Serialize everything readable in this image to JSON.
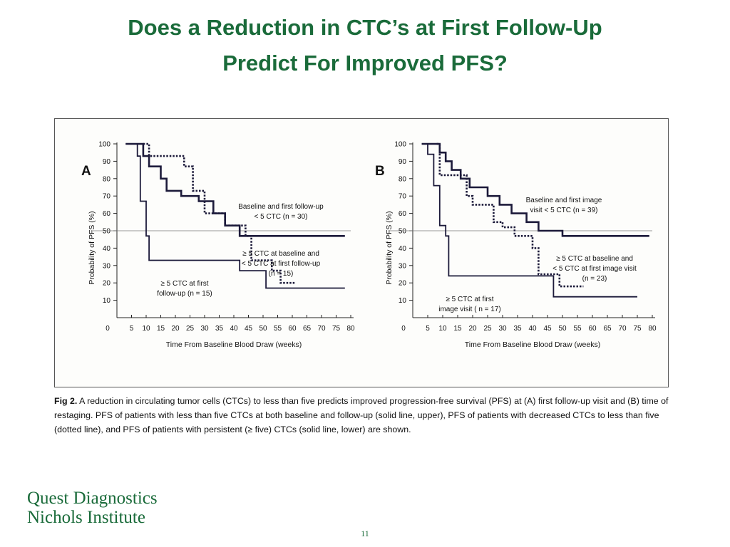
{
  "slide": {
    "title_line1": "Does a Reduction in CTC’s at First Follow-Up",
    "title_line2": "Predict For Improved PFS?",
    "page_number": "11",
    "logo_line1": "Quest Diagnostics",
    "logo_line2": "Nichols Institute"
  },
  "caption": {
    "label": "Fig 2.",
    "text": "A reduction in circulating tumor cells (CTCs) to less than five predicts improved progression-free survival (PFS) at (A) first follow-up visit and (B) time of restaging. PFS of patients with less than five CTCs at both baseline and follow-up (solid line, upper), PFS of patients with decreased CTCs to less than five (dotted line), and PFS of patients with persistent (≥ five) CTCs (solid line, lower) are shown."
  },
  "colors": {
    "title": "#1a6b3a",
    "series": "#1c1a3a",
    "refline": "#777777"
  },
  "chart_data": [
    {
      "type": "line",
      "panel_label": "A",
      "xlabel": "Time From Baseline Blood Draw (weeks)",
      "ylabel": "Probability of PFS (%)",
      "xlim": [
        0,
        80
      ],
      "ylim": [
        0,
        100
      ],
      "x_ticks": [
        0,
        5,
        10,
        15,
        20,
        25,
        30,
        35,
        40,
        45,
        50,
        55,
        60,
        65,
        70,
        75,
        80
      ],
      "y_ticks": [
        10,
        20,
        30,
        40,
        50,
        60,
        70,
        80,
        90,
        100
      ],
      "reference_line_y": 50,
      "series": [
        {
          "style": "solid-thick",
          "points": [
            [
              3,
              100
            ],
            [
              9,
              100
            ],
            [
              9,
              93
            ],
            [
              11,
              93
            ],
            [
              11,
              87
            ],
            [
              15,
              87
            ],
            [
              15,
              80
            ],
            [
              17,
              80
            ],
            [
              17,
              73
            ],
            [
              22,
              73
            ],
            [
              22,
              70
            ],
            [
              28,
              70
            ],
            [
              28,
              67
            ],
            [
              33,
              67
            ],
            [
              33,
              60
            ],
            [
              37,
              60
            ],
            [
              37,
              53
            ],
            [
              42,
              53
            ],
            [
              42,
              47
            ],
            [
              78,
              47
            ]
          ]
        },
        {
          "style": "dotted",
          "points": [
            [
              9,
              100
            ],
            [
              11,
              100
            ],
            [
              11,
              93
            ],
            [
              23,
              93
            ],
            [
              23,
              87
            ],
            [
              26,
              87
            ],
            [
              26,
              73
            ],
            [
              30,
              73
            ],
            [
              30,
              60
            ],
            [
              37,
              60
            ],
            [
              37,
              53
            ],
            [
              44,
              53
            ],
            [
              44,
              47
            ],
            [
              46,
              47
            ],
            [
              46,
              33
            ],
            [
              53,
              33
            ],
            [
              53,
              27
            ],
            [
              56,
              27
            ],
            [
              56,
              20
            ],
            [
              61,
              20
            ]
          ]
        },
        {
          "style": "solid-thin",
          "points": [
            [
              3,
              100
            ],
            [
              7,
              100
            ],
            [
              7,
              93
            ],
            [
              8,
              93
            ],
            [
              8,
              67
            ],
            [
              10,
              67
            ],
            [
              10,
              47
            ],
            [
              11,
              47
            ],
            [
              11,
              33
            ],
            [
              42,
              33
            ],
            [
              42,
              27
            ],
            [
              51,
              27
            ],
            [
              51,
              17
            ],
            [
              78,
              17
            ]
          ]
        }
      ],
      "annotations": [
        {
          "text_lines": [
            "Baseline and first follow-up",
            "< 5 CTC (n = 30)"
          ]
        },
        {
          "text_lines": [
            "≥ 5 CTC at baseline and",
            "< 5 CTC at first follow-up",
            "(n = 15)"
          ]
        },
        {
          "text_lines": [
            "≥ 5 CTC at first",
            "follow-up (n = 15)"
          ]
        }
      ]
    },
    {
      "type": "line",
      "panel_label": "B",
      "xlabel": "Time From Baseline Blood Draw (weeks)",
      "ylabel": "Probability of PFS (%)",
      "xlim": [
        0,
        80
      ],
      "ylim": [
        0,
        100
      ],
      "x_ticks": [
        0,
        5,
        10,
        15,
        20,
        25,
        30,
        35,
        40,
        45,
        50,
        55,
        60,
        65,
        70,
        75,
        80
      ],
      "y_ticks": [
        10,
        20,
        30,
        40,
        50,
        60,
        70,
        80,
        90,
        100
      ],
      "reference_line_y": 50,
      "series": [
        {
          "style": "solid-thick",
          "points": [
            [
              3,
              100
            ],
            [
              9,
              100
            ],
            [
              9,
              95
            ],
            [
              11,
              95
            ],
            [
              11,
              90
            ],
            [
              13,
              90
            ],
            [
              13,
              85
            ],
            [
              16,
              85
            ],
            [
              16,
              80
            ],
            [
              19,
              80
            ],
            [
              19,
              75
            ],
            [
              25,
              75
            ],
            [
              25,
              70
            ],
            [
              29,
              70
            ],
            [
              29,
              65
            ],
            [
              33,
              65
            ],
            [
              33,
              60
            ],
            [
              38,
              60
            ],
            [
              38,
              55
            ],
            [
              42,
              55
            ],
            [
              42,
              50
            ],
            [
              50,
              50
            ],
            [
              50,
              47
            ],
            [
              79,
              47
            ]
          ]
        },
        {
          "style": "dotted",
          "points": [
            [
              8,
              100
            ],
            [
              9,
              100
            ],
            [
              9,
              82
            ],
            [
              18,
              82
            ],
            [
              18,
              70
            ],
            [
              20,
              70
            ],
            [
              20,
              65
            ],
            [
              27,
              65
            ],
            [
              27,
              55
            ],
            [
              30,
              55
            ],
            [
              30,
              52
            ],
            [
              34,
              52
            ],
            [
              34,
              47
            ],
            [
              40,
              47
            ],
            [
              40,
              40
            ],
            [
              42,
              40
            ],
            [
              42,
              25
            ],
            [
              49,
              25
            ],
            [
              49,
              18
            ],
            [
              57,
              18
            ]
          ]
        },
        {
          "style": "solid-thin",
          "points": [
            [
              3,
              100
            ],
            [
              5,
              100
            ],
            [
              5,
              94
            ],
            [
              7,
              94
            ],
            [
              7,
              76
            ],
            [
              9,
              76
            ],
            [
              9,
              53
            ],
            [
              11,
              53
            ],
            [
              11,
              47
            ],
            [
              12,
              47
            ],
            [
              12,
              24
            ],
            [
              47,
              24
            ],
            [
              47,
              12
            ],
            [
              75,
              12
            ]
          ]
        }
      ],
      "annotations": [
        {
          "text_lines": [
            "Baseline and first image",
            "visit < 5 CTC (n = 39)"
          ]
        },
        {
          "text_lines": [
            "≥ 5 CTC at baseline and",
            "< 5 CTC at first image visit",
            "(n = 23)"
          ]
        },
        {
          "text_lines": [
            "≥ 5 CTC at first",
            "image visit ( n = 17)"
          ]
        }
      ]
    }
  ]
}
